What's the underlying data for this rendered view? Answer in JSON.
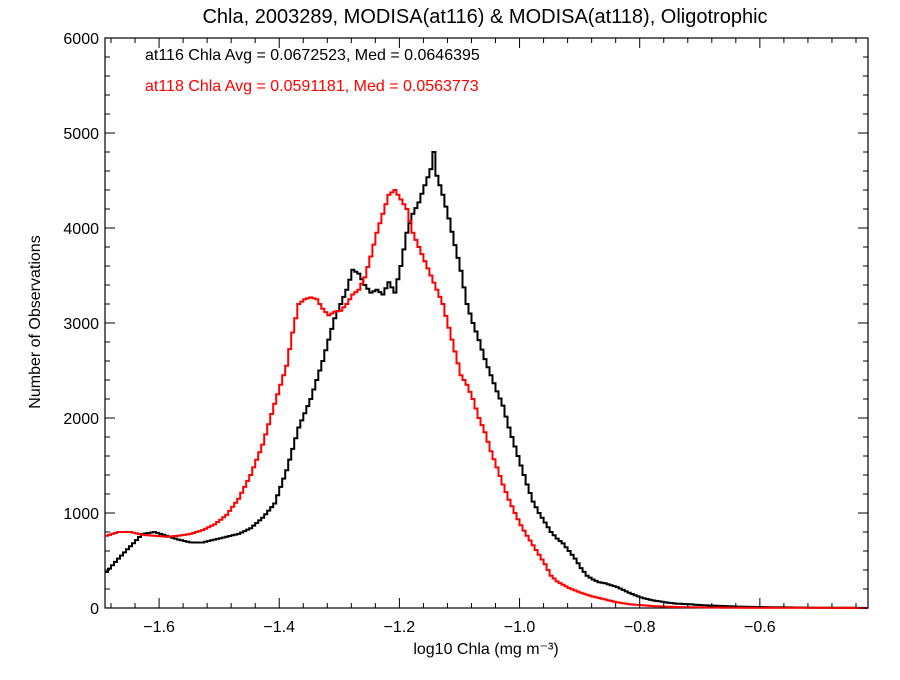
{
  "chart_data": {
    "type": "line",
    "title": "Chla, 2003289, MODISA(at116) & MODISA(at118), Oligotrophic",
    "xlabel": "log10 Chla (mg m⁻³)",
    "ylabel": "Number of Observations",
    "xlim": [
      -1.69,
      -0.42
    ],
    "ylim": [
      0,
      6000
    ],
    "xticks": [
      -1.6,
      -1.4,
      -1.2,
      -1.0,
      -0.8,
      -0.6
    ],
    "xtick_labels": [
      "−1.6",
      "−1.4",
      "−1.2",
      "−1.0",
      "−0.8",
      "−0.6"
    ],
    "yticks": [
      0,
      1000,
      2000,
      3000,
      4000,
      5000,
      6000
    ],
    "ytick_labels": [
      "0",
      "1000",
      "2000",
      "3000",
      "4000",
      "5000",
      "6000"
    ],
    "grid": false,
    "annotations": [
      {
        "text": "at116 Chla Avg = 0.0672523, Med = 0.0646395",
        "color": "#000000"
      },
      {
        "text": "at118 Chla Avg = 0.0591181, Med = 0.0563773",
        "color": "#ff0000"
      }
    ],
    "series": [
      {
        "color": "#000000",
        "points": [
          [
            -1.69,
            380
          ],
          [
            -1.67,
            520
          ],
          [
            -1.65,
            650
          ],
          [
            -1.63,
            780
          ],
          [
            -1.61,
            800
          ],
          [
            -1.59,
            760
          ],
          [
            -1.57,
            720
          ],
          [
            -1.55,
            690
          ],
          [
            -1.53,
            690
          ],
          [
            -1.51,
            720
          ],
          [
            -1.49,
            750
          ],
          [
            -1.47,
            780
          ],
          [
            -1.45,
            840
          ],
          [
            -1.43,
            950
          ],
          [
            -1.41,
            1100
          ],
          [
            -1.39,
            1450
          ],
          [
            -1.37,
            1900
          ],
          [
            -1.35,
            2200
          ],
          [
            -1.33,
            2600
          ],
          [
            -1.31,
            3050
          ],
          [
            -1.29,
            3350
          ],
          [
            -1.28,
            3560
          ],
          [
            -1.27,
            3520
          ],
          [
            -1.26,
            3400
          ],
          [
            -1.25,
            3320
          ],
          [
            -1.24,
            3350
          ],
          [
            -1.23,
            3300
          ],
          [
            -1.22,
            3430
          ],
          [
            -1.21,
            3320
          ],
          [
            -1.2,
            3600
          ],
          [
            -1.19,
            3950
          ],
          [
            -1.18,
            4150
          ],
          [
            -1.17,
            4270
          ],
          [
            -1.16,
            4450
          ],
          [
            -1.15,
            4620
          ],
          [
            -1.145,
            4800
          ],
          [
            -1.14,
            4550
          ],
          [
            -1.13,
            4350
          ],
          [
            -1.12,
            4100
          ],
          [
            -1.11,
            3820
          ],
          [
            -1.1,
            3550
          ],
          [
            -1.09,
            3200
          ],
          [
            -1.08,
            3000
          ],
          [
            -1.07,
            2820
          ],
          [
            -1.06,
            2620
          ],
          [
            -1.05,
            2450
          ],
          [
            -1.04,
            2280
          ],
          [
            -1.03,
            2130
          ],
          [
            -1.02,
            1900
          ],
          [
            -1.01,
            1700
          ],
          [
            -1.0,
            1500
          ],
          [
            -0.99,
            1300
          ],
          [
            -0.98,
            1120
          ],
          [
            -0.97,
            1000
          ],
          [
            -0.96,
            900
          ],
          [
            -0.95,
            800
          ],
          [
            -0.94,
            730
          ],
          [
            -0.93,
            680
          ],
          [
            -0.92,
            600
          ],
          [
            -0.91,
            520
          ],
          [
            -0.9,
            420
          ],
          [
            -0.89,
            340
          ],
          [
            -0.88,
            300
          ],
          [
            -0.87,
            270
          ],
          [
            -0.86,
            260
          ],
          [
            -0.84,
            220
          ],
          [
            -0.82,
            160
          ],
          [
            -0.8,
            110
          ],
          [
            -0.78,
            80
          ],
          [
            -0.76,
            60
          ],
          [
            -0.74,
            45
          ],
          [
            -0.72,
            40
          ],
          [
            -0.7,
            30
          ],
          [
            -0.68,
            25
          ],
          [
            -0.66,
            20
          ],
          [
            -0.64,
            15
          ],
          [
            -0.62,
            12
          ],
          [
            -0.6,
            10
          ],
          [
            -0.55,
            6
          ],
          [
            -0.5,
            3
          ],
          [
            -0.45,
            2
          ],
          [
            -0.42,
            0
          ]
        ]
      },
      {
        "color": "#ff0000",
        "points": [
          [
            -1.69,
            760
          ],
          [
            -1.67,
            800
          ],
          [
            -1.65,
            800
          ],
          [
            -1.63,
            770
          ],
          [
            -1.61,
            760
          ],
          [
            -1.59,
            750
          ],
          [
            -1.57,
            760
          ],
          [
            -1.55,
            780
          ],
          [
            -1.53,
            820
          ],
          [
            -1.51,
            880
          ],
          [
            -1.49,
            980
          ],
          [
            -1.47,
            1150
          ],
          [
            -1.45,
            1400
          ],
          [
            -1.43,
            1720
          ],
          [
            -1.41,
            2150
          ],
          [
            -1.39,
            2550
          ],
          [
            -1.38,
            2900
          ],
          [
            -1.37,
            3200
          ],
          [
            -1.36,
            3250
          ],
          [
            -1.35,
            3270
          ],
          [
            -1.34,
            3250
          ],
          [
            -1.33,
            3150
          ],
          [
            -1.32,
            3080
          ],
          [
            -1.31,
            3120
          ],
          [
            -1.3,
            3130
          ],
          [
            -1.29,
            3200
          ],
          [
            -1.28,
            3300
          ],
          [
            -1.27,
            3350
          ],
          [
            -1.26,
            3480
          ],
          [
            -1.25,
            3700
          ],
          [
            -1.24,
            3950
          ],
          [
            -1.23,
            4150
          ],
          [
            -1.22,
            4350
          ],
          [
            -1.21,
            4400
          ],
          [
            -1.2,
            4300
          ],
          [
            -1.19,
            4200
          ],
          [
            -1.18,
            3950
          ],
          [
            -1.17,
            3800
          ],
          [
            -1.16,
            3650
          ],
          [
            -1.15,
            3500
          ],
          [
            -1.14,
            3350
          ],
          [
            -1.13,
            3200
          ],
          [
            -1.12,
            2950
          ],
          [
            -1.11,
            2700
          ],
          [
            -1.1,
            2450
          ],
          [
            -1.09,
            2350
          ],
          [
            -1.08,
            2200
          ],
          [
            -1.07,
            2000
          ],
          [
            -1.06,
            1850
          ],
          [
            -1.05,
            1650
          ],
          [
            -1.04,
            1480
          ],
          [
            -1.03,
            1300
          ],
          [
            -1.02,
            1140
          ],
          [
            -1.01,
            1000
          ],
          [
            -1.0,
            870
          ],
          [
            -0.99,
            760
          ],
          [
            -0.98,
            660
          ],
          [
            -0.97,
            560
          ],
          [
            -0.96,
            460
          ],
          [
            -0.95,
            340
          ],
          [
            -0.94,
            280
          ],
          [
            -0.92,
            210
          ],
          [
            -0.9,
            160
          ],
          [
            -0.88,
            120
          ],
          [
            -0.86,
            90
          ],
          [
            -0.84,
            60
          ],
          [
            -0.82,
            40
          ],
          [
            -0.8,
            30
          ],
          [
            -0.78,
            20
          ],
          [
            -0.76,
            15
          ],
          [
            -0.74,
            10
          ],
          [
            -0.7,
            6
          ],
          [
            -0.65,
            4
          ],
          [
            -0.6,
            3
          ],
          [
            -0.5,
            2
          ],
          [
            -0.42,
            0
          ]
        ]
      }
    ]
  }
}
